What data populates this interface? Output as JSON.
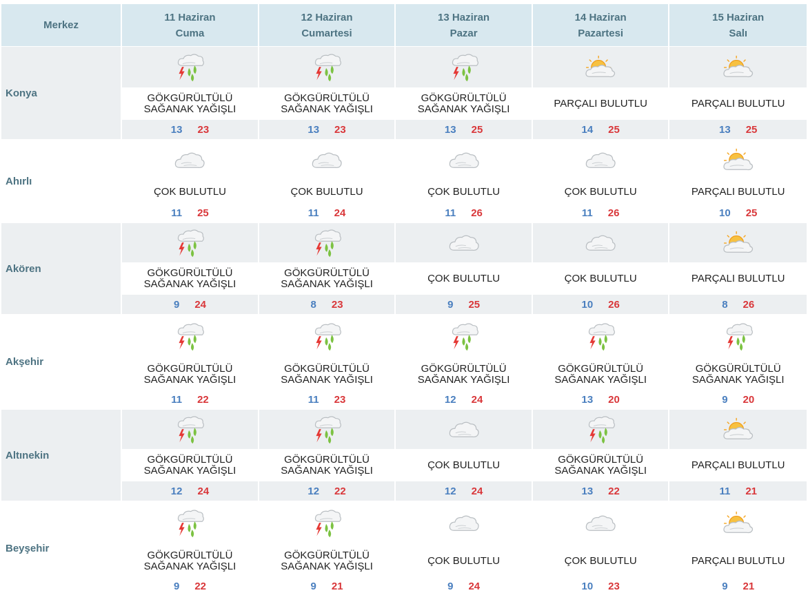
{
  "header": {
    "merkez_label": "Merkez",
    "days": [
      {
        "date": "11 Haziran",
        "weekday": "Cuma"
      },
      {
        "date": "12 Haziran",
        "weekday": "Cumartesi"
      },
      {
        "date": "13 Haziran",
        "weekday": "Pazar"
      },
      {
        "date": "14 Haziran",
        "weekday": "Pazartesi"
      },
      {
        "date": "15 Haziran",
        "weekday": "Salı"
      }
    ]
  },
  "colors": {
    "header_bg": "#d8e8ef",
    "row_shade": "#eceff1",
    "min_temp": "#4a7fbf",
    "max_temp": "#d9373a",
    "label": "#4d7382"
  },
  "cities": [
    {
      "name": "Konya",
      "days": [
        {
          "icon": "thunderstorm-icon",
          "line1": "GÖKGÜRÜLTÜLÜ",
          "line2": "SAĞANAK YAĞIŞLI",
          "min": "13",
          "max": "23"
        },
        {
          "icon": "thunderstorm-icon",
          "line1": "GÖKGÜRÜLTÜLÜ",
          "line2": "SAĞANAK YAĞIŞLI",
          "min": "13",
          "max": "23"
        },
        {
          "icon": "thunderstorm-icon",
          "line1": "GÖKGÜRÜLTÜLÜ",
          "line2": "SAĞANAK YAĞIŞLI",
          "min": "13",
          "max": "25"
        },
        {
          "icon": "partly-cloudy-icon",
          "line1": "PARÇALI BULUTLU",
          "line2": "",
          "min": "14",
          "max": "25"
        },
        {
          "icon": "partly-cloudy-icon",
          "line1": "PARÇALI BULUTLU",
          "line2": "",
          "min": "13",
          "max": "25"
        }
      ]
    },
    {
      "name": "Ahırlı",
      "days": [
        {
          "icon": "cloudy-icon",
          "line1": "ÇOK BULUTLU",
          "line2": "",
          "min": "11",
          "max": "25"
        },
        {
          "icon": "cloudy-icon",
          "line1": "ÇOK BULUTLU",
          "line2": "",
          "min": "11",
          "max": "24"
        },
        {
          "icon": "cloudy-icon",
          "line1": "ÇOK BULUTLU",
          "line2": "",
          "min": "11",
          "max": "26"
        },
        {
          "icon": "cloudy-icon",
          "line1": "ÇOK BULUTLU",
          "line2": "",
          "min": "11",
          "max": "26"
        },
        {
          "icon": "partly-cloudy-icon",
          "line1": "PARÇALI BULUTLU",
          "line2": "",
          "min": "10",
          "max": "25"
        }
      ]
    },
    {
      "name": "Akören",
      "days": [
        {
          "icon": "thunderstorm-icon",
          "line1": "GÖKGÜRÜLTÜLÜ",
          "line2": "SAĞANAK YAĞIŞLI",
          "min": "9",
          "max": "24"
        },
        {
          "icon": "thunderstorm-icon",
          "line1": "GÖKGÜRÜLTÜLÜ",
          "line2": "SAĞANAK YAĞIŞLI",
          "min": "8",
          "max": "23"
        },
        {
          "icon": "cloudy-icon",
          "line1": "ÇOK BULUTLU",
          "line2": "",
          "min": "9",
          "max": "25"
        },
        {
          "icon": "cloudy-icon",
          "line1": "ÇOK BULUTLU",
          "line2": "",
          "min": "10",
          "max": "26"
        },
        {
          "icon": "partly-cloudy-icon",
          "line1": "PARÇALI BULUTLU",
          "line2": "",
          "min": "8",
          "max": "26"
        }
      ]
    },
    {
      "name": "Akşehir",
      "days": [
        {
          "icon": "thunderstorm-icon",
          "line1": "GÖKGÜRÜLTÜLÜ",
          "line2": "SAĞANAK YAĞIŞLI",
          "min": "11",
          "max": "22"
        },
        {
          "icon": "thunderstorm-icon",
          "line1": "GÖKGÜRÜLTÜLÜ",
          "line2": "SAĞANAK YAĞIŞLI",
          "min": "11",
          "max": "23"
        },
        {
          "icon": "thunderstorm-icon",
          "line1": "GÖKGÜRÜLTÜLÜ",
          "line2": "SAĞANAK YAĞIŞLI",
          "min": "12",
          "max": "24"
        },
        {
          "icon": "thunderstorm-icon",
          "line1": "GÖKGÜRÜLTÜLÜ",
          "line2": "SAĞANAK YAĞIŞLI",
          "min": "13",
          "max": "20"
        },
        {
          "icon": "thunderstorm-icon",
          "line1": "GÖKGÜRÜLTÜLÜ",
          "line2": "SAĞANAK YAĞIŞLI",
          "min": "9",
          "max": "20"
        }
      ]
    },
    {
      "name": "Altınekin",
      "days": [
        {
          "icon": "thunderstorm-icon",
          "line1": "GÖKGÜRÜLTÜLÜ",
          "line2": "SAĞANAK YAĞIŞLI",
          "min": "12",
          "max": "24"
        },
        {
          "icon": "thunderstorm-icon",
          "line1": "GÖKGÜRÜLTÜLÜ",
          "line2": "SAĞANAK YAĞIŞLI",
          "min": "12",
          "max": "22"
        },
        {
          "icon": "cloudy-icon",
          "line1": "ÇOK BULUTLU",
          "line2": "",
          "min": "12",
          "max": "24"
        },
        {
          "icon": "thunderstorm-icon",
          "line1": "GÖKGÜRÜLTÜLÜ",
          "line2": "SAĞANAK YAĞIŞLI",
          "min": "13",
          "max": "22"
        },
        {
          "icon": "partly-cloudy-icon",
          "line1": "PARÇALI BULUTLU",
          "line2": "",
          "min": "11",
          "max": "21"
        }
      ]
    },
    {
      "name": "Beyşehir",
      "days": [
        {
          "icon": "thunderstorm-icon",
          "line1": "GÖKGÜRÜLTÜLÜ",
          "line2": "SAĞANAK YAĞIŞLI",
          "min": "9",
          "max": "22"
        },
        {
          "icon": "thunderstorm-icon",
          "line1": "GÖKGÜRÜLTÜLÜ",
          "line2": "SAĞANAK YAĞIŞLI",
          "min": "9",
          "max": "21"
        },
        {
          "icon": "cloudy-icon",
          "line1": "ÇOK BULUTLU",
          "line2": "",
          "min": "9",
          "max": "24"
        },
        {
          "icon": "cloudy-icon",
          "line1": "ÇOK BULUTLU",
          "line2": "",
          "min": "10",
          "max": "23"
        },
        {
          "icon": "partly-cloudy-icon",
          "line1": "PARÇALI BULUTLU",
          "line2": "",
          "min": "9",
          "max": "21"
        }
      ]
    }
  ]
}
